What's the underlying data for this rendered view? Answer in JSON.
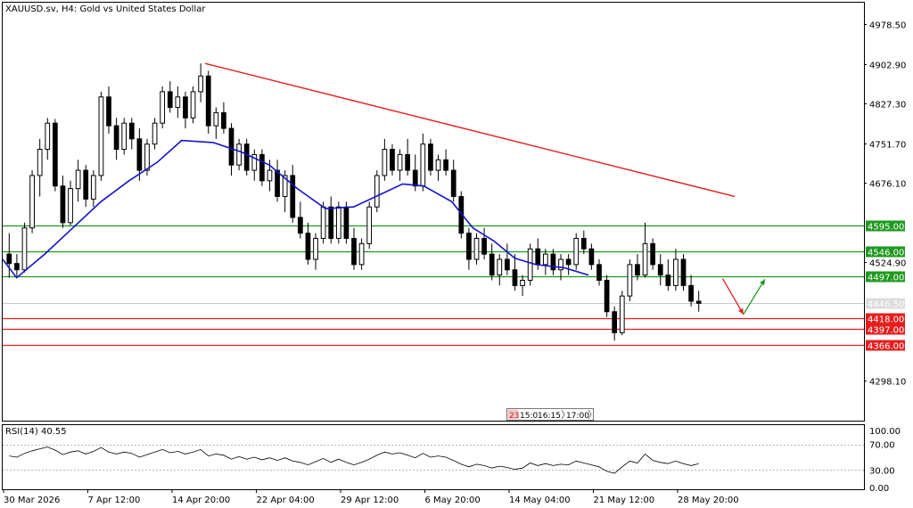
{
  "header": {
    "title": "XAUUSD.sv, H4:  Gold vs United States Dollar"
  },
  "rsi_panel": {
    "label": "RSI(14) 40.55"
  },
  "time_box": {
    "items": [
      "23",
      "15:0",
      "16:15",
      "17:00"
    ]
  },
  "colors": {
    "candle": "#000000",
    "ma": "#1414c8",
    "trendline": "#e61e1e",
    "resistance": "#1e9a1e",
    "support": "#e61e1e",
    "current_price_line": "#c8c8c8",
    "arrow_down": "#e61e1e",
    "arrow_up": "#1e9a1e"
  },
  "chart_data": [
    {
      "type": "candlestick",
      "title": "XAUUSD.sv, H4:  Gold vs United States Dollar",
      "x_ticks": [
        "30 Mar 2026",
        "7 Apr 12:00",
        "14 Apr 20:00",
        "22 Apr 04:00",
        "29 Apr 12:00",
        "6 May 20:00",
        "14 May 04:00",
        "21 May 12:00",
        "28 May 20:00"
      ],
      "y_ticks": [
        "4978.50",
        "4902.90",
        "4827.30",
        "4751.70",
        "4676.10",
        "4524.90",
        "4298.10"
      ],
      "ylim": [
        4222,
        5020
      ],
      "grid": false,
      "horizontal_levels": [
        {
          "value": 4595.0,
          "label": "4595.00",
          "role": "resistance"
        },
        {
          "value": 4546.0,
          "label": "4546.00",
          "role": "resistance"
        },
        {
          "value": 4497.0,
          "label": "4497.00",
          "role": "resistance"
        },
        {
          "value": 4446.5,
          "label": "4446.50",
          "role": "current"
        },
        {
          "value": 4418.0,
          "label": "4418.00",
          "role": "support"
        },
        {
          "value": 4397.0,
          "label": "4397.00",
          "role": "support"
        },
        {
          "value": 4366.0,
          "label": "4366.00",
          "role": "support"
        }
      ],
      "trendline": {
        "from": {
          "bar": 0.235,
          "price": 4904
        },
        "to": {
          "bar": 0.85,
          "price": 4650
        }
      },
      "moving_average_path": [
        [
          0.0,
          4530
        ],
        [
          0.02,
          4495
        ],
        [
          0.06,
          4540
        ],
        [
          0.1,
          4590
        ],
        [
          0.14,
          4640
        ],
        [
          0.18,
          4680
        ],
        [
          0.22,
          4715
        ],
        [
          0.255,
          4757
        ],
        [
          0.3,
          4753
        ],
        [
          0.34,
          4735
        ],
        [
          0.38,
          4710
        ],
        [
          0.42,
          4665
        ],
        [
          0.46,
          4627
        ],
        [
          0.5,
          4630
        ],
        [
          0.54,
          4655
        ],
        [
          0.57,
          4674
        ],
        [
          0.6,
          4670
        ],
        [
          0.64,
          4640
        ],
        [
          0.67,
          4590
        ],
        [
          0.7,
          4565
        ],
        [
          0.73,
          4532
        ],
        [
          0.76,
          4520
        ],
        [
          0.8,
          4514
        ],
        [
          0.835,
          4500
        ]
      ],
      "forecast_arrows": [
        {
          "from": {
            "bar": 0.836,
            "price": 4493
          },
          "to": {
            "bar": 0.86,
            "price": 4425
          },
          "direction": "down"
        },
        {
          "from": {
            "bar": 0.86,
            "price": 4425
          },
          "to": {
            "bar": 0.885,
            "price": 4492
          },
          "direction": "up"
        }
      ],
      "candles": [
        {
          "o": 4540,
          "h": 4580,
          "l": 4495,
          "c": 4522
        },
        {
          "o": 4522,
          "h": 4540,
          "l": 4498,
          "c": 4510
        },
        {
          "o": 4510,
          "h": 4600,
          "l": 4505,
          "c": 4590
        },
        {
          "o": 4590,
          "h": 4700,
          "l": 4580,
          "c": 4690
        },
        {
          "o": 4690,
          "h": 4760,
          "l": 4650,
          "c": 4740
        },
        {
          "o": 4740,
          "h": 4800,
          "l": 4720,
          "c": 4790
        },
        {
          "o": 4790,
          "h": 4798,
          "l": 4660,
          "c": 4670
        },
        {
          "o": 4670,
          "h": 4690,
          "l": 4590,
          "c": 4600
        },
        {
          "o": 4600,
          "h": 4680,
          "l": 4595,
          "c": 4665
        },
        {
          "o": 4665,
          "h": 4720,
          "l": 4640,
          "c": 4700
        },
        {
          "o": 4700,
          "h": 4710,
          "l": 4630,
          "c": 4645
        },
        {
          "o": 4645,
          "h": 4700,
          "l": 4630,
          "c": 4690
        },
        {
          "o": 4690,
          "h": 4850,
          "l": 4680,
          "c": 4840
        },
        {
          "o": 4840,
          "h": 4860,
          "l": 4770,
          "c": 4785
        },
        {
          "o": 4785,
          "h": 4800,
          "l": 4720,
          "c": 4740
        },
        {
          "o": 4740,
          "h": 4800,
          "l": 4730,
          "c": 4790
        },
        {
          "o": 4790,
          "h": 4800,
          "l": 4740,
          "c": 4760
        },
        {
          "o": 4760,
          "h": 4780,
          "l": 4680,
          "c": 4700
        },
        {
          "o": 4700,
          "h": 4760,
          "l": 4690,
          "c": 4750
        },
        {
          "o": 4750,
          "h": 4800,
          "l": 4740,
          "c": 4790
        },
        {
          "o": 4790,
          "h": 4860,
          "l": 4780,
          "c": 4850
        },
        {
          "o": 4850,
          "h": 4870,
          "l": 4810,
          "c": 4820
        },
        {
          "o": 4820,
          "h": 4860,
          "l": 4800,
          "c": 4840
        },
        {
          "o": 4840,
          "h": 4850,
          "l": 4780,
          "c": 4800
        },
        {
          "o": 4800,
          "h": 4860,
          "l": 4790,
          "c": 4850
        },
        {
          "o": 4850,
          "h": 4904,
          "l": 4830,
          "c": 4880
        },
        {
          "o": 4880,
          "h": 4890,
          "l": 4770,
          "c": 4785
        },
        {
          "o": 4785,
          "h": 4820,
          "l": 4760,
          "c": 4810
        },
        {
          "o": 4810,
          "h": 4830,
          "l": 4770,
          "c": 4780
        },
        {
          "o": 4780,
          "h": 4790,
          "l": 4690,
          "c": 4710
        },
        {
          "o": 4710,
          "h": 4760,
          "l": 4700,
          "c": 4750
        },
        {
          "o": 4750,
          "h": 4760,
          "l": 4690,
          "c": 4700
        },
        {
          "o": 4700,
          "h": 4740,
          "l": 4680,
          "c": 4730
        },
        {
          "o": 4730,
          "h": 4740,
          "l": 4670,
          "c": 4680
        },
        {
          "o": 4680,
          "h": 4720,
          "l": 4660,
          "c": 4700
        },
        {
          "o": 4700,
          "h": 4720,
          "l": 4640,
          "c": 4650
        },
        {
          "o": 4650,
          "h": 4700,
          "l": 4620,
          "c": 4690
        },
        {
          "o": 4690,
          "h": 4710,
          "l": 4600,
          "c": 4610
        },
        {
          "o": 4610,
          "h": 4640,
          "l": 4570,
          "c": 4580
        },
        {
          "o": 4580,
          "h": 4600,
          "l": 4520,
          "c": 4530
        },
        {
          "o": 4530,
          "h": 4580,
          "l": 4510,
          "c": 4570
        },
        {
          "o": 4570,
          "h": 4640,
          "l": 4560,
          "c": 4630
        },
        {
          "o": 4630,
          "h": 4650,
          "l": 4560,
          "c": 4570
        },
        {
          "o": 4570,
          "h": 4640,
          "l": 4560,
          "c": 4630
        },
        {
          "o": 4630,
          "h": 4640,
          "l": 4560,
          "c": 4570
        },
        {
          "o": 4570,
          "h": 4590,
          "l": 4510,
          "c": 4520
        },
        {
          "o": 4520,
          "h": 4570,
          "l": 4510,
          "c": 4560
        },
        {
          "o": 4560,
          "h": 4640,
          "l": 4550,
          "c": 4630
        },
        {
          "o": 4630,
          "h": 4700,
          "l": 4620,
          "c": 4690
        },
        {
          "o": 4690,
          "h": 4760,
          "l": 4680,
          "c": 4740
        },
        {
          "o": 4740,
          "h": 4750,
          "l": 4690,
          "c": 4700
        },
        {
          "o": 4700,
          "h": 4740,
          "l": 4680,
          "c": 4730
        },
        {
          "o": 4730,
          "h": 4760,
          "l": 4690,
          "c": 4700
        },
        {
          "o": 4700,
          "h": 4730,
          "l": 4660,
          "c": 4670
        },
        {
          "o": 4670,
          "h": 4770,
          "l": 4660,
          "c": 4750
        },
        {
          "o": 4750,
          "h": 4760,
          "l": 4690,
          "c": 4700
        },
        {
          "o": 4700,
          "h": 4730,
          "l": 4680,
          "c": 4720
        },
        {
          "o": 4720,
          "h": 4740,
          "l": 4690,
          "c": 4700
        },
        {
          "o": 4700,
          "h": 4720,
          "l": 4640,
          "c": 4650
        },
        {
          "o": 4650,
          "h": 4660,
          "l": 4570,
          "c": 4580
        },
        {
          "o": 4580,
          "h": 4590,
          "l": 4510,
          "c": 4530
        },
        {
          "o": 4530,
          "h": 4580,
          "l": 4520,
          "c": 4570
        },
        {
          "o": 4570,
          "h": 4590,
          "l": 4530,
          "c": 4540
        },
        {
          "o": 4540,
          "h": 4560,
          "l": 4490,
          "c": 4500
        },
        {
          "o": 4500,
          "h": 4540,
          "l": 4480,
          "c": 4530
        },
        {
          "o": 4530,
          "h": 4560,
          "l": 4500,
          "c": 4510
        },
        {
          "o": 4510,
          "h": 4540,
          "l": 4470,
          "c": 4480
        },
        {
          "o": 4480,
          "h": 4500,
          "l": 4460,
          "c": 4490
        },
        {
          "o": 4490,
          "h": 4560,
          "l": 4480,
          "c": 4550
        },
        {
          "o": 4550,
          "h": 4570,
          "l": 4510,
          "c": 4520
        },
        {
          "o": 4520,
          "h": 4550,
          "l": 4500,
          "c": 4540
        },
        {
          "o": 4540,
          "h": 4550,
          "l": 4500,
          "c": 4510
        },
        {
          "o": 4510,
          "h": 4540,
          "l": 4490,
          "c": 4530
        },
        {
          "o": 4530,
          "h": 4540,
          "l": 4500,
          "c": 4520
        },
        {
          "o": 4520,
          "h": 4580,
          "l": 4510,
          "c": 4570
        },
        {
          "o": 4570,
          "h": 4585,
          "l": 4540,
          "c": 4550
        },
        {
          "o": 4550,
          "h": 4560,
          "l": 4510,
          "c": 4520
        },
        {
          "o": 4520,
          "h": 4530,
          "l": 4480,
          "c": 4490
        },
        {
          "o": 4490,
          "h": 4500,
          "l": 4420,
          "c": 4430
        },
        {
          "o": 4430,
          "h": 4440,
          "l": 4375,
          "c": 4390
        },
        {
          "o": 4390,
          "h": 4470,
          "l": 4385,
          "c": 4460
        },
        {
          "o": 4460,
          "h": 4530,
          "l": 4450,
          "c": 4520
        },
        {
          "o": 4520,
          "h": 4540,
          "l": 4490,
          "c": 4500
        },
        {
          "o": 4500,
          "h": 4600,
          "l": 4495,
          "c": 4560
        },
        {
          "o": 4560,
          "h": 4570,
          "l": 4510,
          "c": 4520
        },
        {
          "o": 4520,
          "h": 4540,
          "l": 4480,
          "c": 4500
        },
        {
          "o": 4500,
          "h": 4530,
          "l": 4470,
          "c": 4480
        },
        {
          "o": 4480,
          "h": 4550,
          "l": 4470,
          "c": 4530
        },
        {
          "o": 4530,
          "h": 4540,
          "l": 4470,
          "c": 4480
        },
        {
          "o": 4480,
          "h": 4500,
          "l": 4440,
          "c": 4450
        },
        {
          "o": 4450,
          "h": 4470,
          "l": 4430,
          "c": 4446
        }
      ]
    },
    {
      "type": "line",
      "title": "RSI(14) 40.55",
      "y_ticks": [
        "100.00",
        "70.00",
        "30.00",
        "0.00"
      ],
      "ylim": [
        0,
        100
      ],
      "levels": [
        70,
        30
      ],
      "values": [
        52,
        50,
        56,
        60,
        63,
        66,
        61,
        54,
        58,
        60,
        55,
        59,
        65,
        58,
        55,
        58,
        56,
        50,
        54,
        58,
        62,
        57,
        59,
        55,
        58,
        62,
        52,
        55,
        53,
        47,
        51,
        47,
        50,
        46,
        49,
        45,
        49,
        44,
        42,
        38,
        43,
        48,
        42,
        47,
        42,
        38,
        42,
        47,
        53,
        58,
        55,
        57,
        53,
        49,
        56,
        50,
        52,
        50,
        45,
        39,
        35,
        39,
        37,
        33,
        36,
        34,
        31,
        33,
        41,
        37,
        40,
        37,
        39,
        38,
        44,
        41,
        38,
        35,
        28,
        25,
        35,
        44,
        41,
        55,
        45,
        42,
        40,
        44,
        40,
        37,
        40
      ]
    }
  ]
}
